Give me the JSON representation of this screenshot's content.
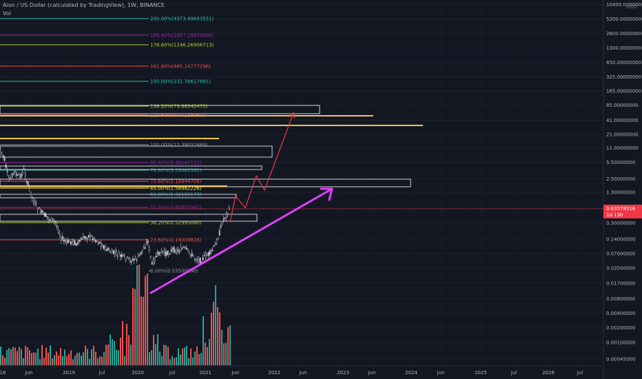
{
  "header": {
    "title": "Aion / US Dollar (calculated by TradingView), 1W, BINANCE",
    "volume_label": "Vol",
    "currency": "USD"
  },
  "price_labels": {
    "current": "0.63578516",
    "countdown": "1d 13h"
  },
  "colors": {
    "background": "#131722",
    "up": "#26a69a",
    "down": "#ef5350",
    "candle": "#d1d4dc",
    "arrow": "#e040fb",
    "projection": "#f23645",
    "gold": "#f5c542",
    "current_price": "#f23645"
  },
  "chart_data": {
    "type": "candlestick",
    "title": "Aion / US Dollar (calculated by TradingView), 1W, BINANCE",
    "y_scale": "log",
    "y_ticks": [
      "10400.00000000",
      "5200.00000000",
      "2600.00000000",
      "1300.00000000",
      "650.00000000",
      "325.00000000",
      "165.00000000",
      "85.00000000",
      "41.00000000",
      "21.00000000",
      "11.00000000",
      "5.50000000",
      "2.50000000",
      "1.30000000",
      "0.63578516",
      "0.30000000",
      "0.14000000",
      "0.07000000",
      "0.03500000",
      "0.01700000",
      "0.00800000",
      "0.00400000",
      "0.00200000",
      "0.00100000",
      "0.00045000"
    ],
    "y_tick_values": [
      10400,
      5200,
      2600,
      1300,
      650,
      325,
      165,
      85,
      41,
      21,
      11,
      5.5,
      2.5,
      1.3,
      0.63578516,
      0.3,
      0.14,
      0.07,
      0.035,
      0.017,
      0.008,
      0.004,
      0.002,
      0.001,
      0.00045
    ],
    "x_ticks": [
      "18",
      "Jun",
      "2019",
      "Jul",
      "2020",
      "Jul",
      "2021",
      "Jun",
      "2022",
      "Jun",
      "2023",
      "Jun",
      "2024",
      "Jun",
      "2025",
      "Jul",
      "2026",
      "Jul"
    ],
    "fib_levels": [
      {
        "label": "200.00%(4373.49693551)",
        "color": "#26c6a6"
      },
      {
        "label": "185.40%(1857.19859366)",
        "color": "#9c27b0"
      },
      {
        "label": "178.60%(1246.26906713)",
        "color": "#b2d235"
      },
      {
        "label": "161.80%(465.14777296)",
        "color": "#ef5350"
      },
      {
        "label": "150.00%(232.78617681)",
        "color": "#26c6a6"
      },
      {
        "label": "138.20%(79.86342470)",
        "color": "#b2d235"
      },
      {
        "label": "123.60%(9.47118963)",
        "color": "#ef5350"
      },
      {
        "label": "100.00%(12.39031669)",
        "color": "#9598a1"
      },
      {
        "label": "85.40%(5.26147112)",
        "color": "#9c27b0"
      },
      {
        "label": "78.60%(3.53060592)",
        "color": "#26a69a"
      },
      {
        "label": "70.60%(2.18944708)",
        "color": "#ef5350"
      },
      {
        "label": "65.00%(1.58982226)",
        "color": "#f5f542"
      },
      {
        "label": "61.80%(1.32150173)",
        "color": "#26a69a"
      },
      {
        "label": "50.00%(0.65853981)",
        "color": "#9c27b0"
      },
      {
        "label": "38.20%(0.32995080)",
        "color": "#b2d235"
      },
      {
        "label": "23.60%(0.14009826)",
        "color": "#ef5350"
      },
      {
        "label": "0.00%(0.03500290)",
        "color": "#9598a1"
      }
    ],
    "volume": "histogram, peak around early 2020 and early 2021"
  }
}
